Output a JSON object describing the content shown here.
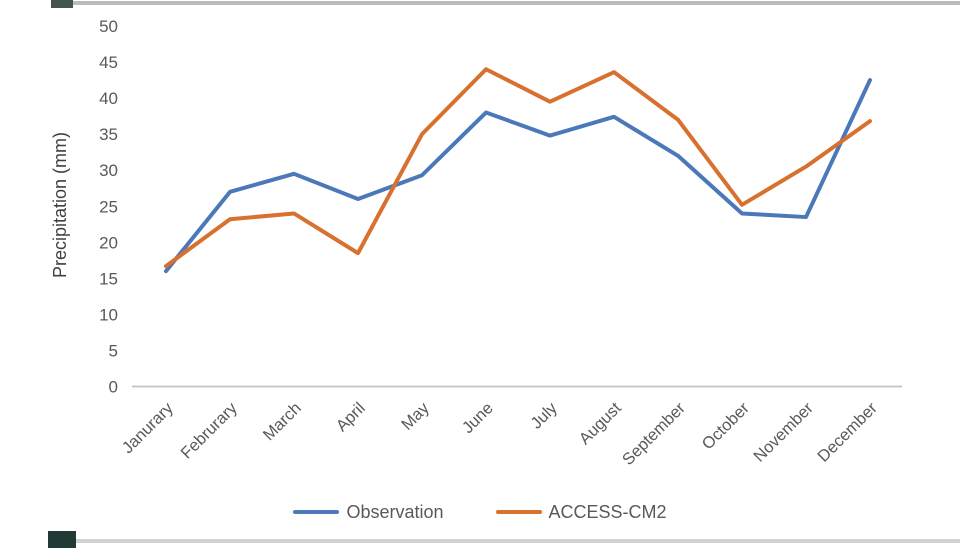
{
  "chart_data": {
    "type": "line",
    "title": "",
    "xlabel": "",
    "ylabel": "Precipitation (mm)",
    "ylim": [
      0,
      50
    ],
    "ytick_step": 5,
    "yticks": [
      0,
      5,
      10,
      15,
      20,
      25,
      30,
      35,
      40,
      45,
      50
    ],
    "grid": false,
    "legend_position": "bottom",
    "categories": [
      "Janurary",
      "Februrary",
      "March",
      "April",
      "May",
      "June",
      "July",
      "August",
      "September",
      "October",
      "November",
      "December"
    ],
    "series": [
      {
        "name": "Observation",
        "color": "#4a78b8",
        "values": [
          16,
          27,
          29.5,
          26,
          29.3,
          38,
          34.8,
          37.4,
          32,
          24,
          23.5,
          42.5
        ]
      },
      {
        "name": "ACCESS-CM2",
        "color": "#d8712f",
        "values": [
          16.7,
          23.2,
          24,
          18.5,
          35,
          44,
          39.5,
          43.6,
          37,
          25.2,
          30.5,
          36.8
        ]
      }
    ]
  }
}
